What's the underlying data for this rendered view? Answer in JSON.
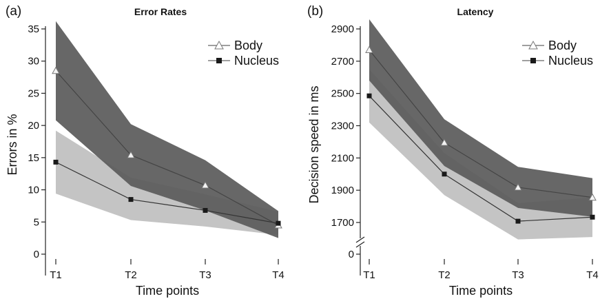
{
  "chart_data": [
    {
      "panel_label": "(a)",
      "type": "line",
      "title": "Error Rates",
      "xlabel": "Time points",
      "ylabel": "Errors in %",
      "categories": [
        "T1",
        "T2",
        "T3",
        "T4"
      ],
      "ylim": [
        0,
        35
      ],
      "yticks": [
        0,
        5,
        10,
        15,
        20,
        25,
        30,
        35
      ],
      "legend_position": "top-right",
      "series": [
        {
          "name": "Body",
          "marker": "open-triangle",
          "values": [
            28.5,
            15.4,
            10.7,
            4.5
          ],
          "upper": [
            36.2,
            20.2,
            14.6,
            6.7
          ],
          "lower": [
            20.8,
            10.6,
            6.8,
            2.5
          ],
          "band_color": "#5a5a5a",
          "line_color": "#444444"
        },
        {
          "name": "Nucleus",
          "marker": "filled-square",
          "values": [
            14.3,
            8.5,
            6.8,
            4.8
          ],
          "upper": [
            19.2,
            11.9,
            9.3,
            6.6
          ],
          "lower": [
            9.4,
            5.3,
            4.3,
            3.0
          ],
          "band_color": "#c4c4c4",
          "line_color": "#333333"
        }
      ]
    },
    {
      "panel_label": "(b)",
      "type": "line",
      "title": "Latency",
      "xlabel": "Time points",
      "ylabel": "Decision speed in ms",
      "categories": [
        "T1",
        "T2",
        "T3",
        "T4"
      ],
      "ylim": [
        1500,
        2950
      ],
      "yticks": [
        1700,
        1900,
        2100,
        2300,
        2500,
        2700,
        2900
      ],
      "extra_tick_label": "0",
      "axis_break": true,
      "legend_position": "top-right",
      "series": [
        {
          "name": "Body",
          "marker": "open-triangle",
          "values": [
            2770,
            2195,
            1918,
            1855
          ],
          "upper": [
            2960,
            2340,
            2045,
            1975
          ],
          "lower": [
            2580,
            2050,
            1790,
            1735
          ],
          "band_color": "#5a5a5a",
          "line_color": "#444444"
        },
        {
          "name": "Nucleus",
          "marker": "filled-square",
          "values": [
            2485,
            2000,
            1708,
            1733
          ],
          "upper": [
            2650,
            2130,
            1820,
            1855
          ],
          "lower": [
            2320,
            1870,
            1595,
            1610
          ],
          "band_color": "#c4c4c4",
          "line_color": "#333333"
        }
      ]
    }
  ]
}
